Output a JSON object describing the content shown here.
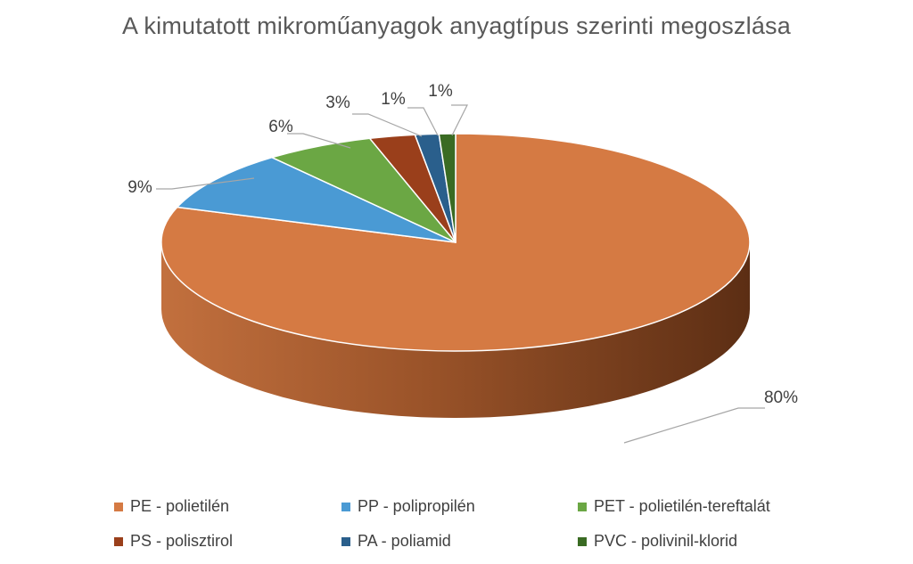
{
  "chart_data": {
    "type": "pie",
    "title": "A kimutatott mikroműanyagok anyagtípus szerinti megoszlása",
    "slices": [
      {
        "label": "PE - polietilén",
        "value": 80,
        "display": "80%",
        "color": "#D57A43"
      },
      {
        "label": "PP - polipropilén",
        "value": 9,
        "display": "9%",
        "color": "#4A9AD4"
      },
      {
        "label": "PET - polietilén-tereftalát",
        "value": 6,
        "display": "6%",
        "color": "#6BA744"
      },
      {
        "label": "PS - polisztirol",
        "value": 2.5,
        "display": "3%",
        "color": "#9A3F1B"
      },
      {
        "label": "PA - poliamid",
        "value": 1.3,
        "display": "1%",
        "color": "#2A5F8C"
      },
      {
        "label": "PVC - polivinil-klorid",
        "value": 0.9,
        "display": "1%",
        "color": "#3A6B23"
      }
    ],
    "legend_position": "bottom",
    "style": "3d"
  }
}
